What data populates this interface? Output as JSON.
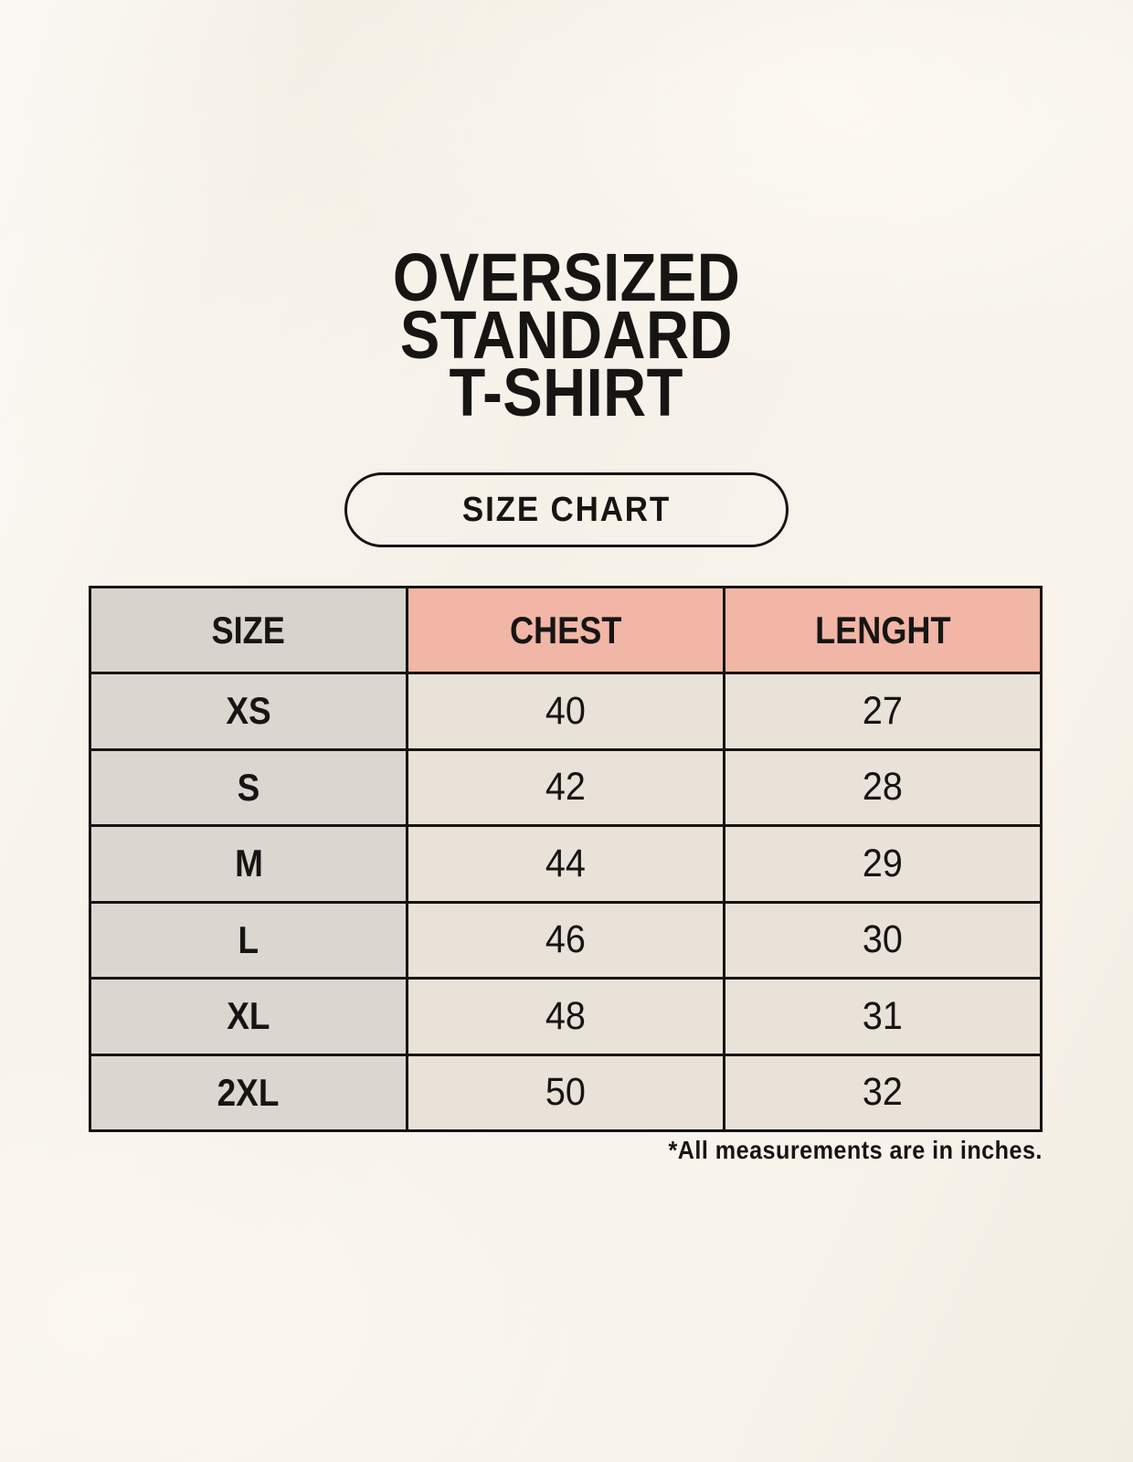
{
  "page": {
    "title_lines": [
      "OVERSIZED",
      "STANDARD",
      "T-SHIRT"
    ],
    "badge_label": "SIZE CHART",
    "footnote": "*All measurements are in inches."
  },
  "colors": {
    "background": "#f7f3ea",
    "table_border": "#161513",
    "header_size_bg": "#d9d3cd",
    "header_measure_bg": "#f1b6a5",
    "size_column_bg": "#dcd6d1",
    "value_cell_bg": "#e9e2d8",
    "text": "#161513"
  },
  "chart_data": {
    "type": "table",
    "title": "OVERSIZED STANDARD T-SHIRT",
    "columns": [
      "SIZE",
      "CHEST",
      "LENGHT"
    ],
    "rows": [
      [
        "XS",
        "40",
        "27"
      ],
      [
        "S",
        "42",
        "28"
      ],
      [
        "M",
        "44",
        "29"
      ],
      [
        "L",
        "46",
        "30"
      ],
      [
        "XL",
        "48",
        "31"
      ],
      [
        "2XL",
        "50",
        "32"
      ]
    ],
    "units_note": "*All measurements are in inches.",
    "layout": "header row: SIZE gray, CHEST/LENGHT salmon; values in inches"
  }
}
